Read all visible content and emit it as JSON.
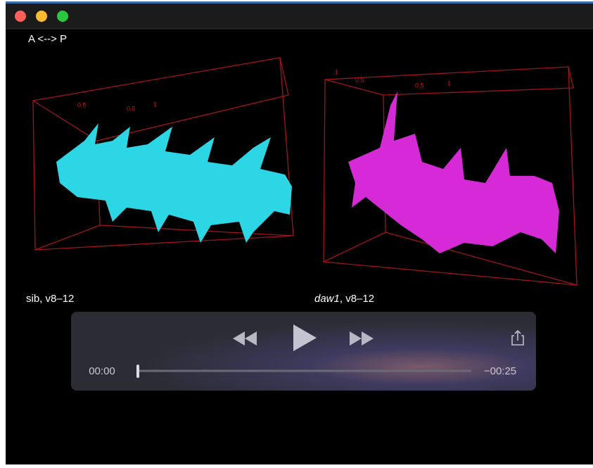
{
  "window": {
    "orientation_label": "A <--> P"
  },
  "panels": [
    {
      "caption": {
        "italic": "",
        "text": "sib, v8–12"
      },
      "axis_labels": [
        "0.5",
        "0.5",
        "1"
      ]
    },
    {
      "caption": {
        "italic": "daw1",
        "text": ", v8–12"
      },
      "axis_labels": [
        "1",
        "0.5",
        "0.5",
        "1"
      ]
    }
  ],
  "player": {
    "elapsed": "00:00",
    "remaining": "−00:25"
  }
}
